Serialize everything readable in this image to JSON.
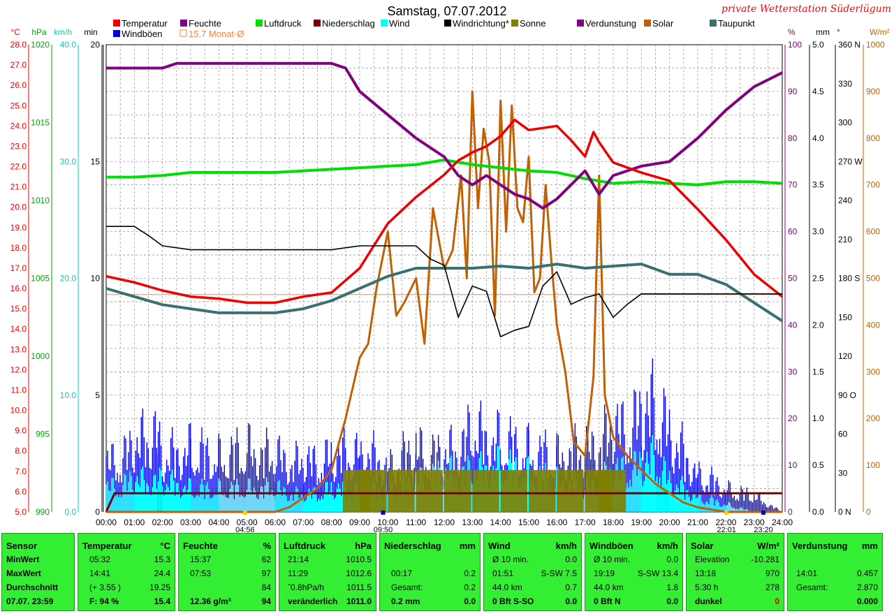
{
  "title": "Samstag, 07.07.2012",
  "signature": "private Wetterstation Süderlügum",
  "legend": [
    {
      "label": "Temperatur",
      "color": "#ee0000"
    },
    {
      "label": "Feuchte",
      "color": "#800080"
    },
    {
      "label": "Luftdruck",
      "color": "#00dd00"
    },
    {
      "label": "Niederschlag",
      "color": "#7a0000"
    },
    {
      "label": "Wind",
      "color": "#00ffff"
    },
    {
      "label": "Windrichtung*",
      "color": "#000000"
    },
    {
      "label": "Sonne",
      "color": "#808000"
    },
    {
      "label": "Verdunstung",
      "color": "#800080"
    },
    {
      "label": "Solar",
      "color": "#c06000"
    },
    {
      "label": "Taupunkt",
      "color": "#3a7070"
    },
    {
      "label": "Windböen",
      "color": "#0000ee"
    },
    {
      "label": "15.7 Monat-Ø",
      "color": "#ff8040"
    }
  ],
  "axis_units": {
    "temp": "°C",
    "press": "hPa",
    "wind": "km/h",
    "min": "min",
    "pct": "%",
    "mm": "mm",
    "deg": "°",
    "wm2": "W/m²"
  },
  "chart_data": {
    "type": "line",
    "title": "Samstag, 07.07.2012",
    "x_ticks": [
      "00:00",
      "01:00",
      "02:00",
      "03:00",
      "04:00",
      "05:00",
      "06:00",
      "07:00",
      "08:00",
      "09:00",
      "10:00",
      "11:00",
      "12:00",
      "13:00",
      "14:00",
      "15:00",
      "16:00",
      "17:00",
      "18:00",
      "19:00",
      "20:00",
      "21:00",
      "22:00",
      "23:00",
      "24:00"
    ],
    "markers": [
      {
        "label": "04:56",
        "hour": 4.93,
        "color": "#ffcc00"
      },
      {
        "label": "09:50",
        "hour": 9.83,
        "color": "#0000cc"
      },
      {
        "label": "22:01",
        "hour": 22.02,
        "color": "#ffcc00"
      },
      {
        "label": "23:20",
        "hour": 23.33,
        "color": "#0000cc"
      }
    ],
    "axes": {
      "temp": {
        "range": [
          5,
          28
        ],
        "ticks": [
          "28.0",
          "27.0",
          "26.0",
          "25.0",
          "24.0",
          "23.0",
          "22.0",
          "21.0",
          "20.0",
          "19.0",
          "18.0",
          "17.0",
          "16.0",
          "15.0",
          "14.0",
          "13.0",
          "12.0",
          "11.0",
          "10.0",
          "9.0",
          "8.0",
          "7.0",
          "6.0",
          "5.0"
        ],
        "color": "#ee0000"
      },
      "press": {
        "range": [
          990,
          1020
        ],
        "ticks": [
          "1020",
          "1015",
          "1010",
          "1005",
          "1000",
          "995",
          "990"
        ],
        "color": "#00aa00"
      },
      "wind": {
        "range": [
          0,
          40
        ],
        "ticks": [
          "40.0",
          "30.0",
          "20.0",
          "10.0",
          "0.0"
        ],
        "color": "#00cccc"
      },
      "min": {
        "range": [
          0,
          20
        ],
        "ticks": [
          "20",
          "15",
          "10",
          "5",
          "0"
        ],
        "color": "#000000"
      },
      "pct": {
        "range": [
          0,
          100
        ],
        "ticks": [
          "100",
          "90",
          "80",
          "70",
          "60",
          "50",
          "40",
          "30",
          "20",
          "10",
          "0"
        ],
        "color": "#800080"
      },
      "mm": {
        "range": [
          0,
          5
        ],
        "ticks": [
          "5.0",
          "4.5",
          "4.0",
          "3.5",
          "3.0",
          "2.5",
          "2.0",
          "1.5",
          "1.0",
          "0.5",
          "0.0"
        ],
        "color": "#000000"
      },
      "deg": {
        "range": [
          0,
          360
        ],
        "ticks": [
          "360 N",
          "330",
          "300",
          "270 W",
          "240",
          "210",
          "180 S",
          "150",
          "120",
          "90 O",
          "60",
          "30",
          "0 N"
        ],
        "color": "#000000"
      },
      "wm2": {
        "range": [
          0,
          1000
        ],
        "ticks": [
          "1000",
          "900",
          "800",
          "700",
          "600",
          "500",
          "400",
          "300",
          "200",
          "100",
          "0"
        ],
        "color": "#c06000"
      }
    },
    "monthly_avg_temp": 15.7,
    "series": [
      {
        "name": "Temperatur",
        "axis": "temp",
        "color": "#ee0000",
        "x": [
          0,
          1,
          2,
          3,
          4,
          5,
          6,
          7,
          8,
          9,
          10,
          11,
          12,
          12.5,
          13,
          13.5,
          14,
          14.5,
          15,
          15.5,
          16,
          16.5,
          17,
          17.3,
          17.5,
          18,
          19,
          20,
          21,
          22,
          23,
          24
        ],
        "y": [
          16.6,
          16.3,
          15.9,
          15.6,
          15.5,
          15.3,
          15.3,
          15.6,
          15.8,
          17.0,
          19.2,
          20.5,
          21.6,
          22.3,
          22.7,
          23.0,
          23.5,
          24.3,
          23.8,
          23.9,
          24.0,
          23.3,
          22.5,
          23.7,
          23.2,
          22.2,
          21.7,
          21.3,
          19.9,
          18.4,
          16.7,
          15.6
        ]
      },
      {
        "name": "Feuchte",
        "axis": "pct",
        "color": "#800080",
        "x": [
          0,
          1,
          2,
          2.5,
          3,
          4,
          5,
          6,
          7,
          8,
          8.5,
          9,
          10,
          11,
          12,
          12.5,
          13,
          13.5,
          14,
          14.5,
          15,
          15.5,
          16,
          16.5,
          17,
          17.5,
          18,
          19,
          20,
          21,
          22,
          23,
          24
        ],
        "y": [
          95,
          95,
          95,
          96,
          96,
          96,
          96,
          96,
          96,
          96,
          95,
          90,
          85,
          80,
          76,
          72,
          70,
          72,
          70,
          68,
          67,
          65,
          67,
          70,
          73,
          68,
          72,
          74,
          75,
          80,
          86,
          91,
          94
        ]
      },
      {
        "name": "Luftdruck",
        "axis": "press",
        "color": "#00dd00",
        "x": [
          0,
          1,
          2,
          3,
          4,
          5,
          6,
          7,
          8,
          9,
          10,
          11,
          12,
          13,
          14,
          15,
          16,
          17,
          18,
          19,
          20,
          21,
          22,
          23,
          24
        ],
        "y": [
          1011.5,
          1011.5,
          1011.6,
          1011.8,
          1011.8,
          1011.8,
          1011.8,
          1011.9,
          1012.0,
          1012.1,
          1012.2,
          1012.3,
          1012.6,
          1012.3,
          1012.1,
          1011.9,
          1011.8,
          1011.4,
          1011.1,
          1011.2,
          1011.1,
          1011.0,
          1011.2,
          1011.2,
          1011.1
        ]
      },
      {
        "name": "Taupunkt",
        "axis": "temp",
        "color": "#3a7070",
        "x": [
          0,
          1,
          2,
          3,
          4,
          5,
          6,
          7,
          8,
          9,
          10,
          11,
          12,
          13,
          14,
          15,
          16,
          17,
          18,
          19,
          20,
          21,
          22,
          23,
          24
        ],
        "y": [
          16.0,
          15.6,
          15.2,
          15.0,
          14.8,
          14.8,
          14.8,
          15.0,
          15.4,
          16.0,
          16.6,
          17.0,
          17.0,
          17.0,
          17.1,
          17.0,
          17.2,
          17.0,
          17.1,
          17.2,
          16.7,
          16.7,
          16.2,
          15.3,
          14.4
        ]
      },
      {
        "name": "Solar",
        "axis": "wm2",
        "color": "#c06000",
        "x": [
          0,
          6,
          6.5,
          7,
          7.5,
          8,
          8.5,
          9,
          9.3,
          9.6,
          10,
          10.3,
          10.6,
          11,
          11.3,
          11.6,
          12,
          12.3,
          12.6,
          12.8,
          13,
          13.2,
          13.4,
          13.6,
          13.8,
          14,
          14.2,
          14.4,
          14.6,
          14.8,
          15,
          15.2,
          15.4,
          15.6,
          15.8,
          16,
          16.3,
          16.6,
          17,
          17.3,
          17.5,
          17.7,
          18,
          18.5,
          19,
          19.5,
          20,
          20.5,
          21,
          21.5,
          22,
          24
        ],
        "y": [
          0,
          0,
          10,
          30,
          50,
          90,
          200,
          330,
          360,
          480,
          600,
          420,
          450,
          500,
          360,
          650,
          520,
          560,
          720,
          500,
          900,
          650,
          820,
          750,
          420,
          880,
          600,
          870,
          650,
          620,
          760,
          470,
          500,
          700,
          540,
          400,
          300,
          150,
          120,
          290,
          720,
          250,
          160,
          120,
          90,
          60,
          40,
          20,
          10,
          5,
          0,
          0
        ]
      },
      {
        "name": "Windrichtung*",
        "axis": "deg",
        "color": "#000000",
        "x": [
          0,
          1,
          1.5,
          2,
          3,
          4,
          5,
          6,
          7,
          8,
          9,
          10,
          11,
          11.5,
          12,
          12.5,
          13,
          13.5,
          14,
          14.5,
          15,
          15.5,
          16,
          16.5,
          17,
          17.5,
          18,
          18.5,
          19,
          20,
          21,
          22,
          23,
          24
        ],
        "y": [
          220,
          220,
          213,
          205,
          202,
          202,
          202,
          202,
          202,
          202,
          205,
          205,
          205,
          195,
          190,
          150,
          174,
          170,
          135,
          140,
          143,
          174,
          185,
          160,
          165,
          168,
          150,
          160,
          168,
          168,
          168,
          168,
          168,
          168
        ]
      },
      {
        "name": "Niederschlag",
        "axis": "mm",
        "color": "#7a0000",
        "x": [
          0,
          0.3,
          24
        ],
        "y": [
          0.0,
          0.2,
          0.2
        ]
      },
      {
        "name": "Sonne",
        "axis": "min",
        "color": "#808000",
        "x": [
          8.4,
          9.0,
          10.0,
          11.0,
          12.0,
          12.5,
          13.0,
          14.0,
          15.0,
          15.5,
          16.0,
          17.0,
          17.5
        ],
        "y": [
          1,
          1,
          1,
          1,
          1,
          0,
          1,
          1,
          1,
          0,
          1,
          1,
          1
        ]
      },
      {
        "name": "Windböen",
        "axis": "wind",
        "color": "#0000ee",
        "x": [
          0,
          1,
          1.8,
          2,
          3,
          4,
          5,
          6,
          7,
          8,
          9,
          10,
          11,
          12,
          13,
          14,
          15,
          16,
          17,
          18,
          19,
          19.5,
          20,
          21,
          22,
          23,
          24
        ],
        "y": [
          6,
          8,
          11,
          7,
          8,
          7,
          8,
          7,
          6,
          7,
          8,
          6,
          8,
          7,
          10,
          9,
          8,
          7,
          8,
          10,
          12,
          14,
          10,
          5,
          3,
          2,
          0
        ]
      },
      {
        "name": "Wind",
        "axis": "wind",
        "color": "#00ffff",
        "x": [
          0,
          1,
          2,
          3,
          4,
          5,
          6,
          7,
          8,
          9,
          10,
          11,
          12,
          13,
          14,
          15,
          16,
          17,
          18,
          19,
          19.5,
          20,
          21,
          22,
          23,
          24
        ],
        "y": [
          3,
          4,
          4,
          3,
          3,
          3,
          3,
          2,
          3,
          3,
          3,
          4,
          5,
          5,
          6,
          5,
          4,
          3,
          5,
          6,
          7,
          4,
          2,
          1,
          0,
          0
        ]
      }
    ]
  },
  "stats": {
    "sensor": {
      "header": "Sensor",
      "rows": [
        "MinWert",
        "MaxWert",
        "Durchschnitt",
        "07.07. 23:59"
      ]
    },
    "temperatur": {
      "header": "Temperatur",
      "unit": "°C",
      "rows": [
        [
          "05:32",
          "15.3"
        ],
        [
          "14:41",
          "24.4"
        ],
        [
          "(+ 3.55 )",
          "19.25"
        ],
        [
          "F: 94 %",
          "15.4"
        ]
      ]
    },
    "feuchte": {
      "header": "Feuchte",
      "unit": "%",
      "rows": [
        [
          "15:37",
          "62"
        ],
        [
          "07:53",
          "97"
        ],
        [
          "",
          "84"
        ],
        [
          "12.36 g/m³",
          "94"
        ]
      ]
    },
    "luftdruck": {
      "header": "Luftdruck",
      "unit": "hPa",
      "rows": [
        [
          "21:14",
          "1010.5"
        ],
        [
          "11:29",
          "1012.6"
        ],
        [
          "ˆ0.8hPa/h",
          "1011.5"
        ],
        [
          "veränderlich",
          "1011.0"
        ]
      ]
    },
    "niederschlag": {
      "header": "Niederschlag",
      "unit": "mm",
      "rows": [
        [
          "",
          ""
        ],
        [
          "00:17",
          "0.2"
        ],
        [
          "Gesamt:",
          "0.2"
        ],
        [
          "0.2 mm",
          "0.0"
        ]
      ]
    },
    "wind": {
      "header": "Wind",
      "unit": "km/h",
      "rows": [
        [
          "Ø 10 min.",
          "0.0"
        ],
        [
          "01:51",
          "S-SW 7.5"
        ],
        [
          "44.0 km",
          "0.7"
        ],
        [
          "0 Bft S-SO",
          "0.0"
        ]
      ]
    },
    "windboeen": {
      "header": "Windböen",
      "unit": "km/h",
      "rows": [
        [
          "Ø 10 min.",
          "0.0"
        ],
        [
          "19:19",
          "S-SW 13.4"
        ],
        [
          "44.0 km",
          "1.8"
        ],
        [
          "0 Bft N",
          "0.0"
        ]
      ]
    },
    "solar": {
      "header": "Solar",
      "unit": "W/m²",
      "rows": [
        [
          "Elevation",
          "-10.281"
        ],
        [
          "13:18",
          "970"
        ],
        [
          "5:30 h",
          "278"
        ],
        [
          "dunkel",
          "0"
        ]
      ]
    },
    "verdunstung": {
      "header": "Verdunstung",
      "unit": "mm",
      "rows": [
        [
          "",
          ""
        ],
        [
          "14:01",
          "0.457"
        ],
        [
          "Gesamt:",
          "2.870"
        ],
        [
          "",
          "0.000"
        ]
      ]
    }
  }
}
